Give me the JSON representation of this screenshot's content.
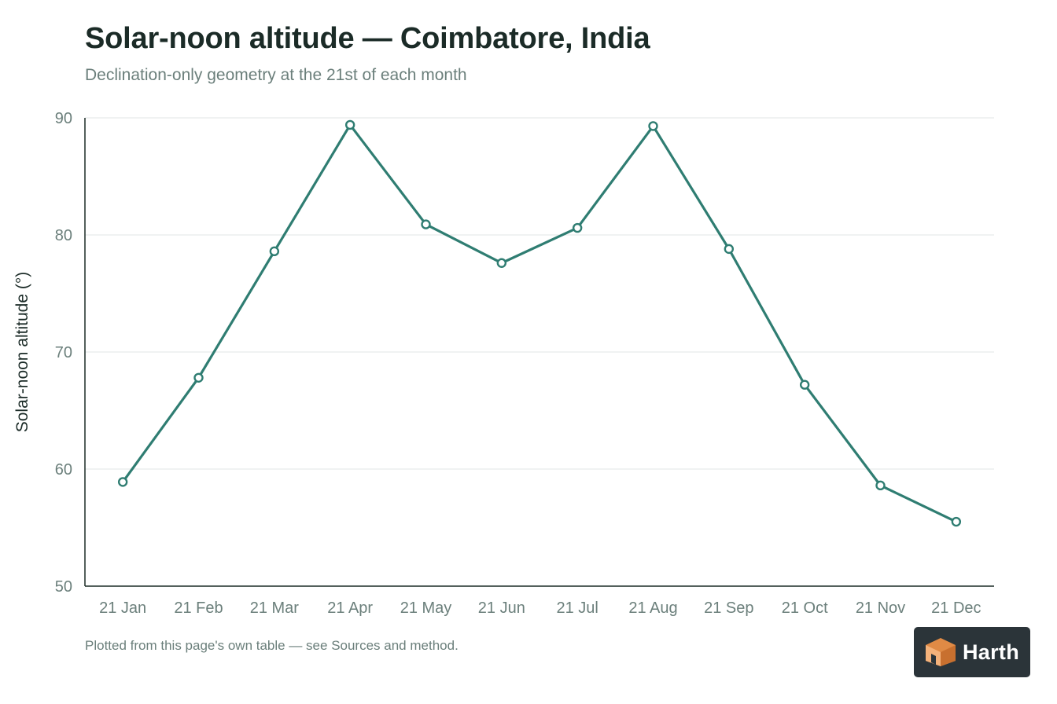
{
  "header": {
    "title": "Solar-noon altitude — Coimbatore, India",
    "subtitle": "Declination-only geometry at the 21st of each month"
  },
  "footer": {
    "note": "Plotted from this page's own table — see Sources and method."
  },
  "logo": {
    "text": "Harth",
    "icon": "cube-logo-icon",
    "colors": {
      "badge": "#2b3439",
      "light_face": "#f4b27a",
      "dark_face": "#e08a45"
    }
  },
  "colors": {
    "line": "#2f7d72",
    "axis": "#1b2b27",
    "grid": "#e6ebea",
    "tick_text": "#6b7f7b"
  },
  "chart_data": {
    "type": "line",
    "title": "Solar-noon altitude — Coimbatore, India",
    "subtitle": "Declination-only geometry at the 21st of each month",
    "xlabel": "",
    "ylabel": "Solar-noon altitude (°)",
    "categories": [
      "21 Jan",
      "21 Feb",
      "21 Mar",
      "21 Apr",
      "21 May",
      "21 Jun",
      "21 Jul",
      "21 Aug",
      "21 Sep",
      "21 Oct",
      "21 Nov",
      "21 Dec"
    ],
    "series": [
      {
        "values": [
          58.9,
          67.8,
          78.6,
          89.4,
          80.9,
          77.6,
          80.6,
          89.3,
          78.8,
          67.2,
          58.6,
          55.5
        ]
      }
    ],
    "ylim": [
      50,
      90
    ],
    "yticks": [
      50,
      60,
      70,
      80,
      90
    ],
    "grid": true,
    "legend": "none",
    "markers": "open-circle"
  }
}
